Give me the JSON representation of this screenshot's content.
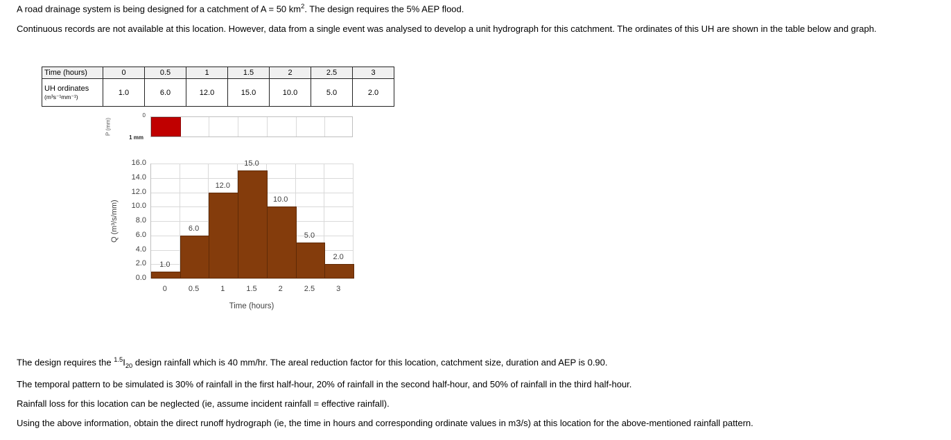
{
  "intro": {
    "line1_pre": "A road drainage system is being designed for a catchment of A = 50 km",
    "line1_sup": "2",
    "line1_post": ". The design requires the 5% AEP flood.",
    "line2": "Continuous records are not available at this location. However, data from a single event was analysed to develop a unit hydrograph for this catchment. The ordinates of this UH are shown in the table below and graph."
  },
  "table": {
    "time_header": "Time (hours)",
    "uh_header_line1": "UH ordinates",
    "uh_header_units": "(m³s⁻¹mm⁻¹)",
    "times": [
      "0",
      "0.5",
      "1",
      "1.5",
      "2",
      "2.5",
      "3"
    ],
    "ordinates": [
      "1.0",
      "6.0",
      "12.0",
      "15.0",
      "10.0",
      "5.0",
      "2.0"
    ]
  },
  "chart_data": {
    "type": "bar",
    "title": "",
    "categories": [
      0,
      0.5,
      1,
      1.5,
      2,
      2.5,
      3
    ],
    "values": [
      1.0,
      6.0,
      12.0,
      15.0,
      10.0,
      5.0,
      2.0
    ],
    "data_labels": [
      "1.0",
      "6.0",
      "12.0",
      "15.0",
      "10.0",
      "5.0",
      "2.0"
    ],
    "xlabel": "Time (hours)",
    "ylabel": "Q (m³/s/mm)",
    "ylim": [
      0,
      16
    ],
    "ytick_step": 2,
    "ytick_labels": [
      "0.0",
      "2.0",
      "4.0",
      "6.0",
      "8.0",
      "10.0",
      "12.0",
      "14.0",
      "16.0"
    ],
    "xtick_labels": [
      "0",
      "0.5",
      "1",
      "1.5",
      "2",
      "2.5",
      "3"
    ],
    "grid": true,
    "legend": "none",
    "bar_color": "#843c0c",
    "rain": {
      "axis_label": "P (mm)",
      "top_tick": "0",
      "depth_label": "1 mm",
      "value_mm": 1.0,
      "interval_index": 0,
      "color": "#c00000"
    }
  },
  "bottom": {
    "p1_pre": "The design requires the ",
    "p1_sup": "1.5",
    "p1_base": "I",
    "p1_sub": "20",
    "p1_post": " design rainfall which is 40 mm/hr. The areal reduction factor for this location, catchment size, duration and AEP is 0.90.",
    "p2": "The temporal pattern to be simulated is 30% of rainfall in the first half-hour, 20% of rainfall in the second half-hour, and 50% of rainfall in the third half-hour.",
    "p3": "Rainfall loss for this location can be neglected (ie, assume incident rainfall = effective rainfall).",
    "p4": "Using the above information, obtain the direct runoff hydrograph (ie, the time in hours and corresponding ordinate values in m3/s) at this location for the above-mentioned rainfall pattern."
  }
}
